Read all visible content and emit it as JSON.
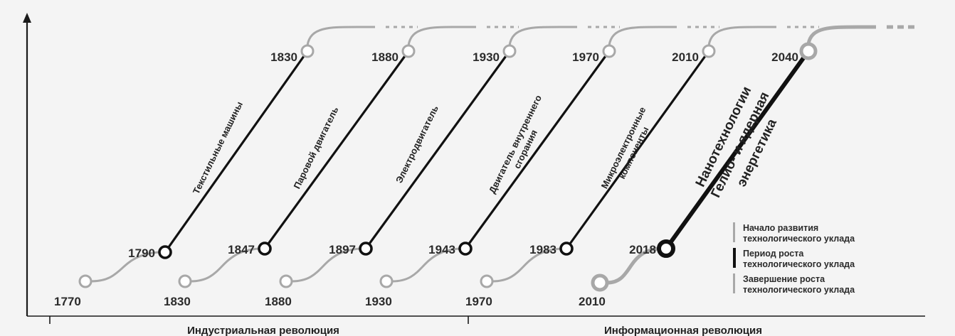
{
  "waves": [
    {
      "start": "1770",
      "growth_start": "1790",
      "growth_end": "1830",
      "label": [
        "Текстильные машины"
      ]
    },
    {
      "start": "1830",
      "growth_start": "1847",
      "growth_end": "1880",
      "label": [
        "Паровой двигатель"
      ]
    },
    {
      "start": "1880",
      "growth_start": "1897",
      "growth_end": "1930",
      "label": [
        "Электродвигатель"
      ]
    },
    {
      "start": "1930",
      "growth_start": "1943",
      "growth_end": "1970",
      "label": [
        "Двигатель внутреннего",
        "сгорания"
      ]
    },
    {
      "start": "1970",
      "growth_start": "1983",
      "growth_end": "2010",
      "label": [
        "Микроэлектронные",
        "компоненты"
      ]
    },
    {
      "start": "2010",
      "growth_start": "2018",
      "growth_end": "2040",
      "label": [
        "Нанотехнологии",
        "Гелио- и ядерная",
        "энергетика"
      ]
    }
  ],
  "revolutions": {
    "industrial": "Индустриальная революция",
    "information": "Информационная революция"
  },
  "legend": [
    {
      "line1": "Начало развития",
      "line2": "технологического уклада",
      "style": "light"
    },
    {
      "line1": "Период роста",
      "line2": "технологического уклада",
      "style": "dark"
    },
    {
      "line1": "Завершение роста",
      "line2": "технологического уклада",
      "style": "light"
    }
  ],
  "colors": {
    "growth_line": "#111111",
    "phase_line": "#a8a8a8",
    "axis": "#1a1a1a",
    "background": "#f4f4f4"
  }
}
